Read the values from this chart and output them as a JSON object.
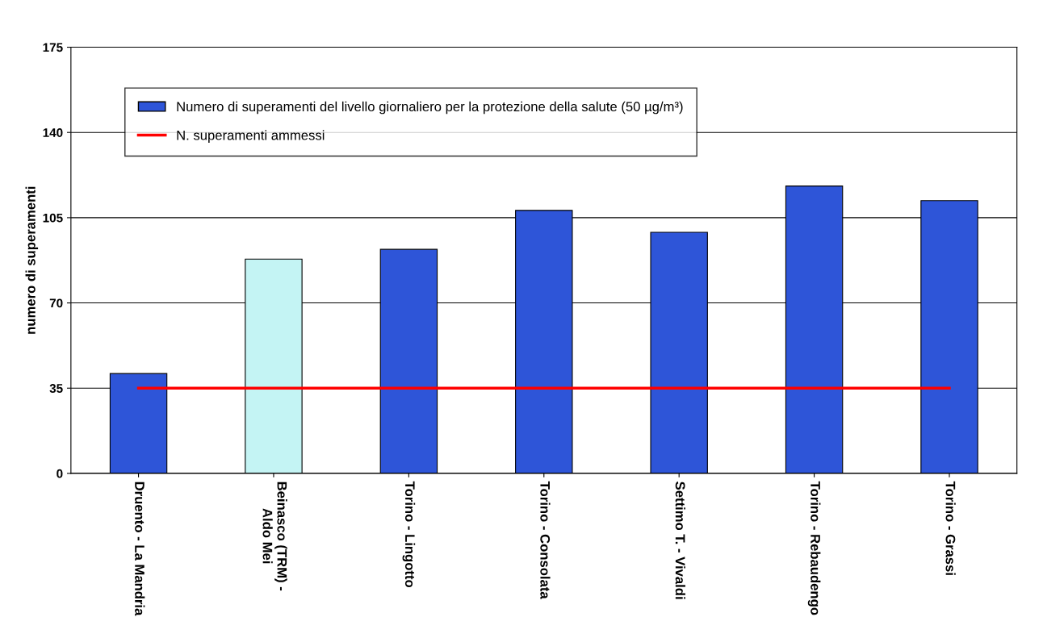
{
  "chart_data": {
    "type": "bar",
    "ylabel": "numero di superamenti",
    "categories": [
      "Druento - La Mandria",
      "Beinasco (TRM) -\nAldo Mei",
      "Torino - Lingotto",
      "Torino - Consolata",
      "Settimo T. - Vivaldi",
      "Torino - Rebaudengo",
      "Torino - Grassi"
    ],
    "series": [
      {
        "name": "Numero di superamenti del livello giornaliero per la protezione della salute (50 µg/m³)",
        "color": "#2e55d8",
        "colors": [
          "#2e55d8",
          "#c4f4f4",
          "#2e55d8",
          "#2e55d8",
          "#2e55d8",
          "#2e55d8",
          "#2e55d8"
        ],
        "values": [
          41,
          88,
          92,
          108,
          99,
          118,
          112
        ]
      },
      {
        "name": "N. superamenti ammessi",
        "type": "line",
        "color": "#ff0000",
        "values": [
          35,
          35,
          35,
          35,
          35,
          35,
          35
        ]
      }
    ],
    "ylim": [
      0,
      175
    ],
    "yticks": [
      0,
      35,
      70,
      105,
      140,
      175
    ],
    "grid": "y",
    "legend": "top left",
    "marker": "none",
    "line_style": "solid"
  }
}
